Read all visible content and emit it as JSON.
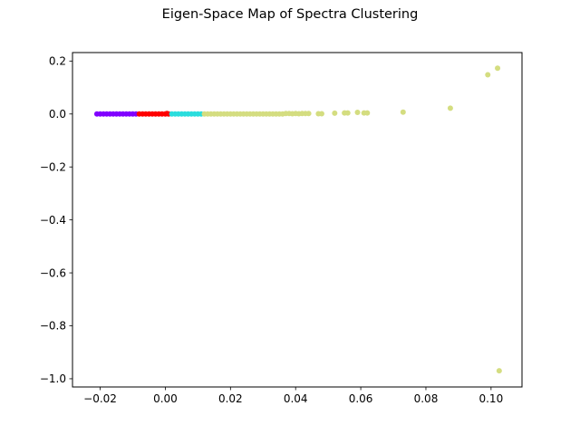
{
  "chart_data": {
    "type": "scatter",
    "title": "Eigen-Space Map of Spectra Clustering",
    "xlabel": "",
    "ylabel": "",
    "xlim": [
      -0.0285,
      0.1095
    ],
    "ylim": [
      -1.031,
      0.232
    ],
    "xticks": [
      -0.02,
      0.0,
      0.02,
      0.04,
      0.06,
      0.08,
      0.1
    ],
    "xtick_labels": [
      "−0.02",
      "0.00",
      "0.02",
      "0.04",
      "0.06",
      "0.08",
      "0.10"
    ],
    "yticks": [
      0.2,
      0.0,
      -0.2,
      -0.4,
      -0.6,
      -0.8,
      -1.0
    ],
    "ytick_labels": [
      "0.2",
      "0.0",
      "−0.2",
      "−0.4",
      "−0.6",
      "−0.8",
      "−1.0"
    ],
    "grid": false,
    "series": [
      {
        "color": "#8000ff",
        "points": [
          [
            -0.021,
            0.0
          ],
          [
            -0.02,
            0.0
          ],
          [
            -0.019,
            0.0
          ],
          [
            -0.018,
            0.0
          ],
          [
            -0.017,
            0.0
          ],
          [
            -0.016,
            0.0
          ],
          [
            -0.015,
            0.0
          ],
          [
            -0.014,
            0.0
          ],
          [
            -0.013,
            0.0
          ],
          [
            -0.012,
            0.0
          ],
          [
            -0.011,
            0.0
          ],
          [
            -0.01,
            0.0
          ],
          [
            -0.009,
            0.0
          ]
        ]
      },
      {
        "color": "#ff0000",
        "points": [
          [
            -0.008,
            0.0
          ],
          [
            -0.007,
            0.0
          ],
          [
            -0.006,
            0.0
          ],
          [
            -0.005,
            0.0
          ],
          [
            -0.004,
            0.0
          ],
          [
            -0.003,
            0.0
          ],
          [
            -0.002,
            0.0
          ],
          [
            -0.001,
            0.0
          ],
          [
            0.0,
            0.0
          ],
          [
            0.001,
            0.0
          ],
          [
            0.0005,
            0.002
          ]
        ]
      },
      {
        "color": "#2adddd",
        "points": [
          [
            0.002,
            0.0
          ],
          [
            0.003,
            0.0
          ],
          [
            0.004,
            0.0
          ],
          [
            0.005,
            0.0
          ],
          [
            0.006,
            0.0
          ],
          [
            0.007,
            0.0
          ],
          [
            0.008,
            0.0
          ],
          [
            0.009,
            0.0
          ],
          [
            0.01,
            0.0
          ],
          [
            0.011,
            0.0
          ]
        ]
      },
      {
        "color": "#d4dd80",
        "points": [
          [
            0.012,
            0.0
          ],
          [
            0.013,
            0.0
          ],
          [
            0.014,
            0.0
          ],
          [
            0.015,
            0.0
          ],
          [
            0.016,
            0.0
          ],
          [
            0.017,
            0.0
          ],
          [
            0.018,
            0.0
          ],
          [
            0.019,
            0.0
          ],
          [
            0.02,
            0.0
          ],
          [
            0.021,
            0.0
          ],
          [
            0.022,
            0.0
          ],
          [
            0.023,
            0.0
          ],
          [
            0.024,
            0.0
          ],
          [
            0.025,
            0.0
          ],
          [
            0.026,
            0.0
          ],
          [
            0.027,
            0.0
          ],
          [
            0.028,
            0.0
          ],
          [
            0.029,
            0.0
          ],
          [
            0.03,
            0.0
          ],
          [
            0.031,
            0.0
          ],
          [
            0.032,
            0.0
          ],
          [
            0.033,
            0.0
          ],
          [
            0.034,
            0.0
          ],
          [
            0.035,
            0.0
          ],
          [
            0.036,
            0.0
          ],
          [
            0.037,
            0.002
          ],
          [
            0.038,
            0.002
          ],
          [
            0.039,
            0.001
          ],
          [
            0.04,
            0.002
          ],
          [
            0.041,
            0.001
          ],
          [
            0.042,
            0.002
          ],
          [
            0.043,
            0.002
          ],
          [
            0.044,
            0.002
          ],
          [
            0.047,
            0.001
          ],
          [
            0.048,
            0.001
          ],
          [
            0.052,
            0.003
          ],
          [
            0.055,
            0.004
          ],
          [
            0.056,
            0.004
          ],
          [
            0.059,
            0.006
          ],
          [
            0.061,
            0.004
          ],
          [
            0.062,
            0.004
          ],
          [
            0.073,
            0.007
          ],
          [
            0.0875,
            0.022
          ],
          [
            0.099,
            0.148
          ],
          [
            0.102,
            0.173
          ],
          [
            0.1025,
            -0.97
          ]
        ]
      }
    ]
  }
}
